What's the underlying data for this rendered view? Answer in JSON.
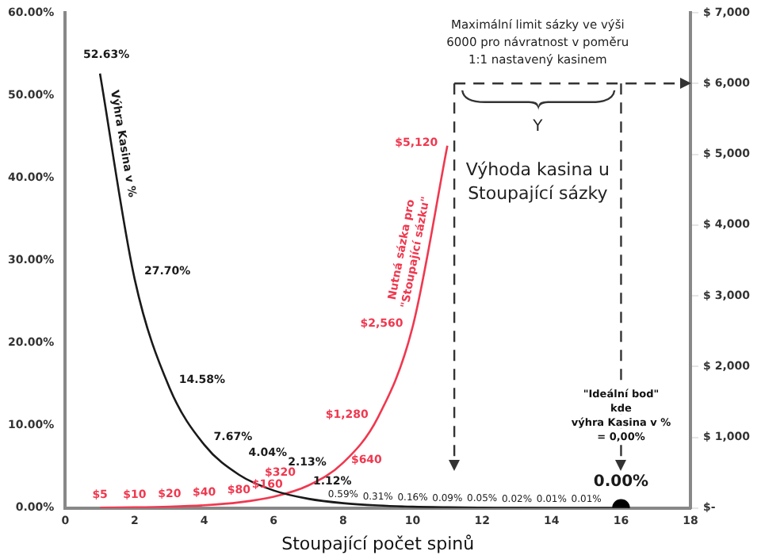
{
  "chart_data": {
    "type": "line",
    "xlabel": "Stoupající počet spinů",
    "x": [
      1,
      2,
      3,
      4,
      5,
      6,
      7,
      8,
      9,
      10,
      11,
      12,
      13,
      14,
      15,
      16
    ],
    "series": [
      {
        "name": "Výhra Kasina v %",
        "color": "#1a1a1a",
        "values": [
          52.63,
          27.7,
          14.58,
          7.67,
          4.04,
          2.13,
          1.12,
          0.59,
          0.31,
          0.16,
          0.09,
          0.05,
          0.02,
          0.01,
          0.01,
          0.0
        ],
        "value_labels": [
          "52.63%",
          "27.70%",
          "14.58%",
          "7.67%",
          "4.04%",
          "2.13%",
          "1.12%",
          "0.59%",
          "0.31%",
          "0.16%",
          "0.09%",
          "0.05%",
          "0.02%",
          "0.01%",
          "0.01%",
          "0.00%"
        ]
      },
      {
        "name": "Nutná sázka pro \"Stoupající sázku\"",
        "color": "#f0384f",
        "axis": "y2",
        "x": [
          1,
          2,
          3,
          4,
          5,
          6,
          7,
          8,
          9,
          10,
          11
        ],
        "values": [
          5,
          10,
          20,
          40,
          80,
          160,
          320,
          640,
          1280,
          2560,
          5120
        ],
        "value_labels": [
          "$5",
          "$10",
          "$20",
          "$40",
          "$80",
          "$160",
          "$320",
          "$640",
          "$1,280",
          "$2,560",
          "$5,120"
        ]
      },
      {
        "type": "scatter",
        "color": "#000000",
        "marker": "circle",
        "x": [
          16
        ],
        "values": [
          0
        ]
      }
    ],
    "xlim": [
      0,
      18
    ],
    "xticks": [
      0,
      2,
      4,
      6,
      8,
      10,
      12,
      14,
      16,
      18
    ],
    "ylim": [
      0,
      60
    ],
    "yticks": [
      {
        "value": 0,
        "label": "0.00%"
      },
      {
        "value": 10,
        "label": "10.00%"
      },
      {
        "value": 20,
        "label": "20.00%"
      },
      {
        "value": 30,
        "label": "30.00%"
      },
      {
        "value": 40,
        "label": "40.00%"
      },
      {
        "value": 50,
        "label": "50.00%"
      },
      {
        "value": 60,
        "label": "60.00%"
      }
    ],
    "y2lim": [
      0,
      7000
    ],
    "y2ticks": [
      {
        "value": 0,
        "label": "$-"
      },
      {
        "value": 1000,
        "label": "$ 1,000"
      },
      {
        "value": 2000,
        "label": "$ 2,000"
      },
      {
        "value": 3000,
        "label": "$ 3,000"
      },
      {
        "value": 4000,
        "label": "$ 4,000"
      },
      {
        "value": 5000,
        "label": "$ 5,000"
      },
      {
        "value": 6000,
        "label": "$ 6,000"
      },
      {
        "value": 7000,
        "label": "$ 7,000"
      }
    ],
    "ref_lines": [
      {
        "axis": "y2",
        "value": 6000,
        "line_style": "dashed",
        "color": "#333333"
      },
      {
        "axis": "x",
        "value": 11.2,
        "line_style": "dashed",
        "color": "#333333"
      },
      {
        "axis": "x",
        "value": 16,
        "line_style": "dashed",
        "color": "#333333"
      }
    ],
    "annotations": [
      "Maximální limit sázky ve výši 6000 pro návratnost v poměru 1:1 nastavený kasinem",
      "Y",
      "Výhoda kasina u Stoupající sázky",
      "\"Ideální bod\" kde výhra Kasina v % = 0,00%"
    ],
    "grid": false,
    "legend": false,
    "line_style": "solid"
  }
}
